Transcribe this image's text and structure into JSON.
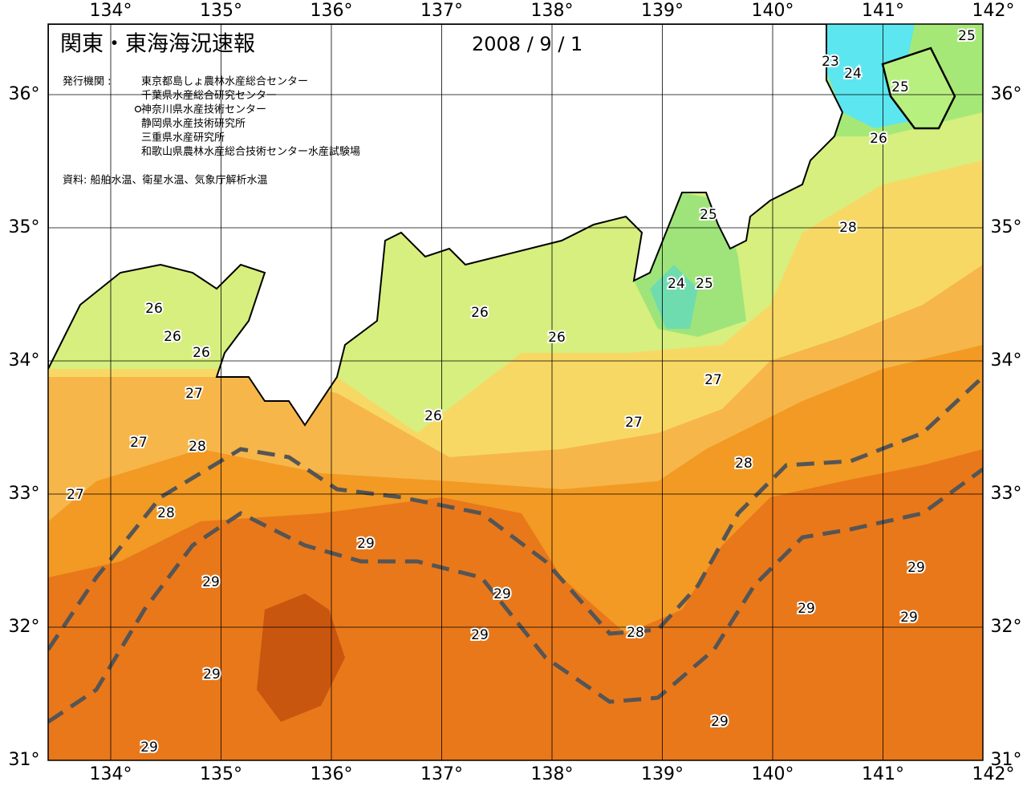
{
  "header": {
    "title": "関東・東海海況速報",
    "date": "2008 / 9 / 1"
  },
  "issuers": {
    "label": "発行機関 :",
    "items": [
      "東京都島しょ農林水産総合センター",
      "千葉県水産総合研究センター",
      "神奈川県水産技術センター",
      "静岡県水産技術研究所",
      "三重県水産研究所",
      "和歌山県農林水産総合技術センター水産試験場"
    ]
  },
  "source": "資料: 船舶水温、衛星水温、気象庁解析水温",
  "lon_ticks": [
    {
      "value": 134,
      "label": "134°"
    },
    {
      "value": 135,
      "label": "135°"
    },
    {
      "value": 136,
      "label": "136°"
    },
    {
      "value": 137,
      "label": "137°"
    },
    {
      "value": 138,
      "label": "138°"
    },
    {
      "value": 139,
      "label": "139°"
    },
    {
      "value": 140,
      "label": "140°"
    },
    {
      "value": 141,
      "label": "141°"
    },
    {
      "value": 142,
      "label": "142°"
    }
  ],
  "lat_ticks": [
    {
      "value": 36,
      "label": "36°"
    },
    {
      "value": 35,
      "label": "35°"
    },
    {
      "value": 34,
      "label": "34°"
    },
    {
      "value": 33,
      "label": "33°"
    },
    {
      "value": 32,
      "label": "32°"
    },
    {
      "value": 31,
      "label": "31°"
    }
  ],
  "contour_labels": [
    25,
    23,
    24,
    25,
    26,
    25,
    28,
    24,
    25,
    26,
    26,
    26,
    26,
    26,
    27,
    27,
    26,
    27,
    27,
    28,
    28,
    27,
    28,
    29,
    29,
    29,
    29,
    29,
    29,
    28,
    29,
    29,
    29,
    29
  ]
}
